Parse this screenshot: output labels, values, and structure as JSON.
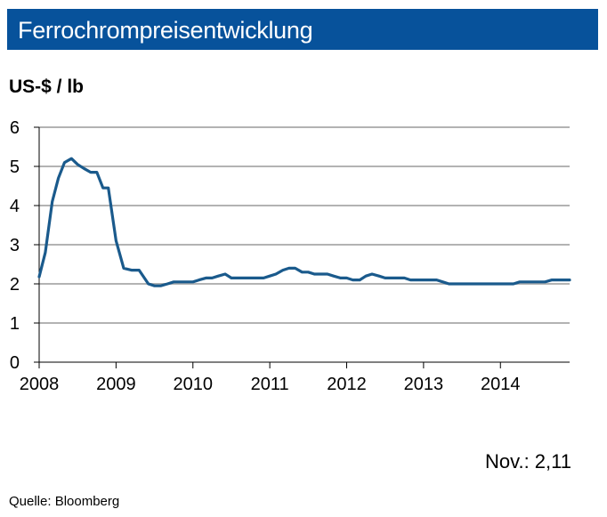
{
  "header": {
    "title": "Ferrochrompreisentwicklung"
  },
  "footer": {
    "latest_value": "Nov.: 2,11",
    "source": "Quelle:  Bloomberg"
  },
  "chart_data": {
    "type": "line",
    "title": "Ferrochrompreisentwicklung",
    "ylabel": "US-$ / lb",
    "xlabel": "",
    "ylim": [
      0,
      6
    ],
    "xlim": [
      2008,
      2014.9
    ],
    "yticks": [
      0,
      1,
      2,
      3,
      4,
      5,
      6
    ],
    "xticks": [
      2008,
      2009,
      2010,
      2011,
      2012,
      2013,
      2014
    ],
    "grid": "horizontal",
    "colors": {
      "line": "#1a5a8c",
      "grid": "#b3b3b3",
      "title_bg": "#07529b"
    },
    "series": [
      {
        "x": [
          2008.0,
          2008.08,
          2008.17,
          2008.25,
          2008.33,
          2008.42,
          2008.5,
          2008.58,
          2008.67,
          2008.75,
          2008.83,
          2008.9,
          2009.0,
          2009.1,
          2009.2,
          2009.3,
          2009.42,
          2009.5,
          2009.58,
          2009.67,
          2009.75,
          2009.83,
          2009.92,
          2010.0,
          2010.08,
          2010.17,
          2010.25,
          2010.33,
          2010.42,
          2010.5,
          2010.58,
          2010.67,
          2010.75,
          2010.83,
          2010.92,
          2011.0,
          2011.08,
          2011.17,
          2011.25,
          2011.33,
          2011.42,
          2011.5,
          2011.58,
          2011.67,
          2011.75,
          2011.83,
          2011.92,
          2012.0,
          2012.08,
          2012.17,
          2012.25,
          2012.33,
          2012.42,
          2012.5,
          2012.58,
          2012.67,
          2012.75,
          2012.83,
          2012.92,
          2013.0,
          2013.08,
          2013.17,
          2013.25,
          2013.33,
          2013.42,
          2013.5,
          2013.58,
          2013.67,
          2013.75,
          2013.83,
          2013.92,
          2014.0,
          2014.08,
          2014.17,
          2014.25,
          2014.33,
          2014.42,
          2014.5,
          2014.58,
          2014.67,
          2014.75,
          2014.83,
          2014.9
        ],
        "y": [
          2.18,
          2.8,
          4.1,
          4.7,
          5.1,
          5.2,
          5.05,
          4.95,
          4.85,
          4.85,
          4.45,
          4.45,
          3.1,
          2.4,
          2.35,
          2.35,
          2.0,
          1.95,
          1.95,
          2.0,
          2.05,
          2.05,
          2.05,
          2.05,
          2.1,
          2.15,
          2.15,
          2.2,
          2.25,
          2.15,
          2.15,
          2.15,
          2.15,
          2.15,
          2.15,
          2.2,
          2.25,
          2.35,
          2.4,
          2.4,
          2.3,
          2.3,
          2.25,
          2.25,
          2.25,
          2.2,
          2.15,
          2.15,
          2.1,
          2.1,
          2.2,
          2.25,
          2.2,
          2.15,
          2.15,
          2.15,
          2.15,
          2.1,
          2.1,
          2.1,
          2.1,
          2.1,
          2.05,
          2.0,
          2.0,
          2.0,
          2.0,
          2.0,
          2.0,
          2.0,
          2.0,
          2.0,
          2.0,
          2.0,
          2.05,
          2.05,
          2.05,
          2.05,
          2.05,
          2.1,
          2.1,
          2.1,
          2.1
        ]
      }
    ]
  }
}
